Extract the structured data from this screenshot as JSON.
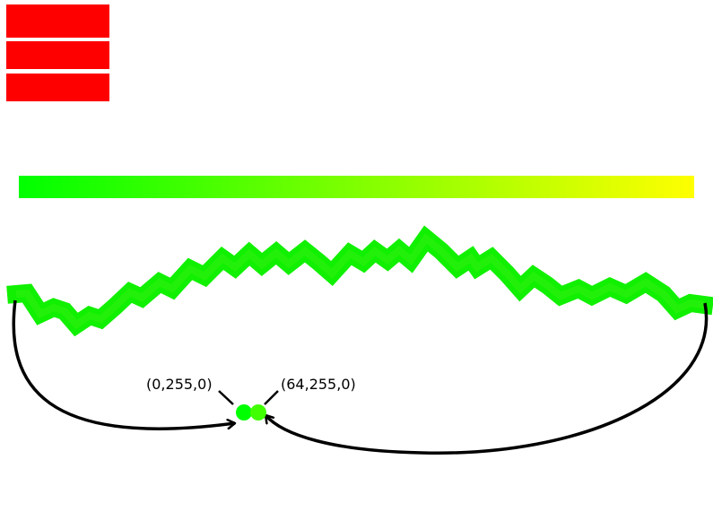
{
  "colors": {
    "block": "#ff0000",
    "gradient_start": "#00ff00",
    "gradient_end": "#ffff00",
    "stroke": "#000000"
  },
  "blocks": [
    "red-block",
    "red-block",
    "red-block"
  ],
  "swatches": [
    {
      "label": "(0,255,0)",
      "color": "#00ff00"
    },
    {
      "label": "(64,255,0)",
      "color": "#40ff00"
    }
  ]
}
